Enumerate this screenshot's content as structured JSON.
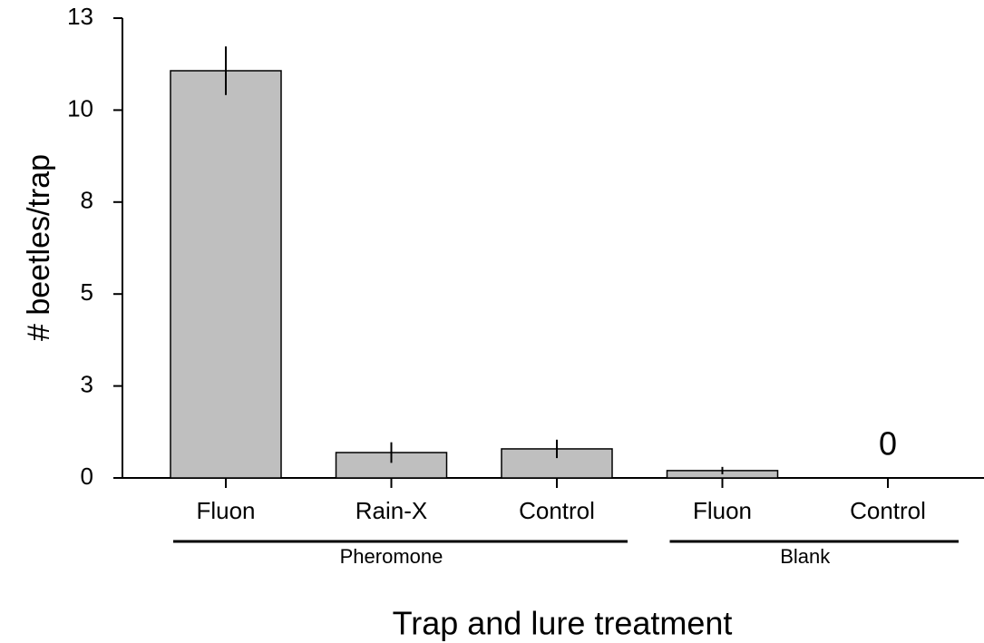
{
  "chart_data": {
    "type": "bar",
    "x_label": "Trap and lure treatment",
    "y_label": "# beetles/trap",
    "categories": [
      "Fluon",
      "Rain-X",
      "Control",
      "Fluon",
      "Control"
    ],
    "values": [
      11.07,
      0.69,
      0.79,
      0.2,
      0
    ],
    "errors": [
      0.66,
      0.28,
      0.25,
      0.1,
      0
    ],
    "value_labels": [
      null,
      null,
      null,
      null,
      "0"
    ],
    "groups": [
      {
        "label": "Pheromone",
        "count": 3
      },
      {
        "label": "Blank",
        "count": 2
      }
    ],
    "color": "#bfbfbf",
    "ylim": [
      0,
      12.5
    ],
    "yticks": [
      0,
      {
        "value": 2.5,
        "label": "3"
      },
      5,
      {
        "value": 7.5,
        "label": "8"
      },
      10,
      {
        "value": 12.5,
        "label": "13"
      }
    ]
  }
}
